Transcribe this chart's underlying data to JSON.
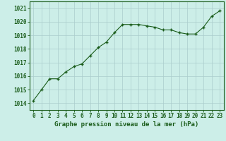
{
  "x": [
    0,
    1,
    2,
    3,
    4,
    5,
    6,
    7,
    8,
    9,
    10,
    11,
    12,
    13,
    14,
    15,
    16,
    17,
    18,
    19,
    20,
    21,
    22,
    23
  ],
  "y": [
    1014.2,
    1015.0,
    1015.8,
    1015.8,
    1016.3,
    1016.7,
    1016.9,
    1017.5,
    1018.1,
    1018.5,
    1019.2,
    1019.8,
    1019.8,
    1019.8,
    1019.7,
    1019.6,
    1019.4,
    1019.4,
    1019.2,
    1019.1,
    1019.1,
    1019.6,
    1020.4,
    1020.8
  ],
  "line_color": "#1a5c1a",
  "marker_color": "#1a5c1a",
  "bg_color": "#cceee8",
  "grid_color": "#aacccc",
  "xlabel": "Graphe pression niveau de la mer (hPa)",
  "xlabel_color": "#1a5c1a",
  "xlabel_fontsize": 6.5,
  "tick_label_color": "#1a5c1a",
  "tick_fontsize": 5.5,
  "ylabel_ticks": [
    1014,
    1015,
    1016,
    1017,
    1018,
    1019,
    1020,
    1021
  ],
  "ylim": [
    1013.5,
    1021.5
  ],
  "xlim": [
    -0.5,
    23.5
  ]
}
